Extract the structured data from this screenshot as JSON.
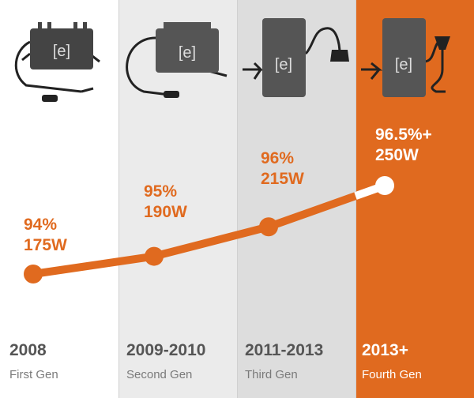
{
  "colors": {
    "accent": "#e06a1f",
    "last_point": "#ffffff",
    "panel_light": "#ebebeb",
    "panel_mid": "#dddddd"
  },
  "chart_data": {
    "type": "line",
    "categories": [
      "2008",
      "2009-2010",
      "2011-2013",
      "2013+"
    ],
    "generations": [
      "First Gen",
      "Second Gen",
      "Third Gen",
      "Fourth Gen"
    ],
    "efficiency": [
      94,
      95,
      96,
      96.5
    ],
    "power_w": [
      175,
      190,
      215,
      250
    ],
    "data_labels": [
      {
        "efficiency": "94%",
        "power": "175W"
      },
      {
        "efficiency": "95%",
        "power": "190W"
      },
      {
        "efficiency": "96%",
        "power": "215W"
      },
      {
        "efficiency": "96.5%+",
        "power": "250W"
      }
    ],
    "grid": false,
    "legend": "none"
  },
  "icons": [
    "microinverter-gen1-icon",
    "microinverter-gen2-icon",
    "microinverter-gen3-icon",
    "microinverter-gen4-icon"
  ]
}
